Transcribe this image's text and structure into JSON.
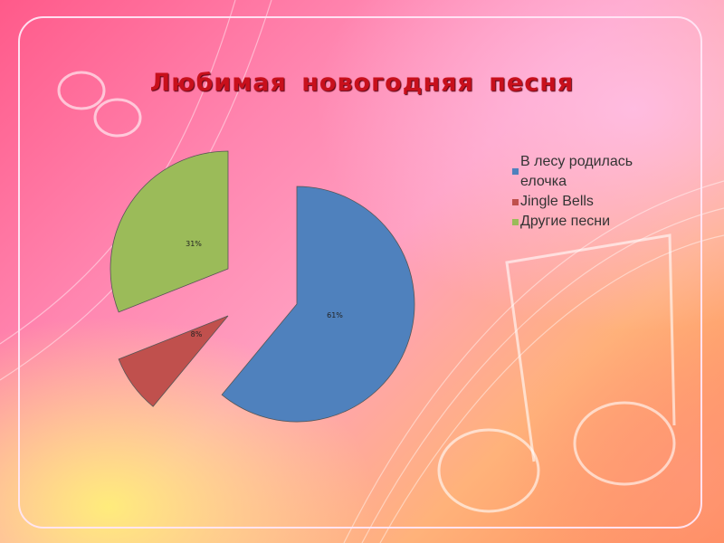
{
  "title": "Любимая новогодняя песня",
  "chart_data": {
    "type": "pie",
    "title": "Любимая новогодняя песня",
    "categories": [
      "В лесу родилась елочка",
      "Jingle Bells",
      "Другие песни"
    ],
    "values": [
      61,
      8,
      31
    ],
    "labels": [
      "61%",
      "8%",
      "31%"
    ],
    "colors": [
      "#4f81bd",
      "#c0504d",
      "#9bbb59"
    ],
    "exploded": true,
    "legend_placement": "right"
  }
}
